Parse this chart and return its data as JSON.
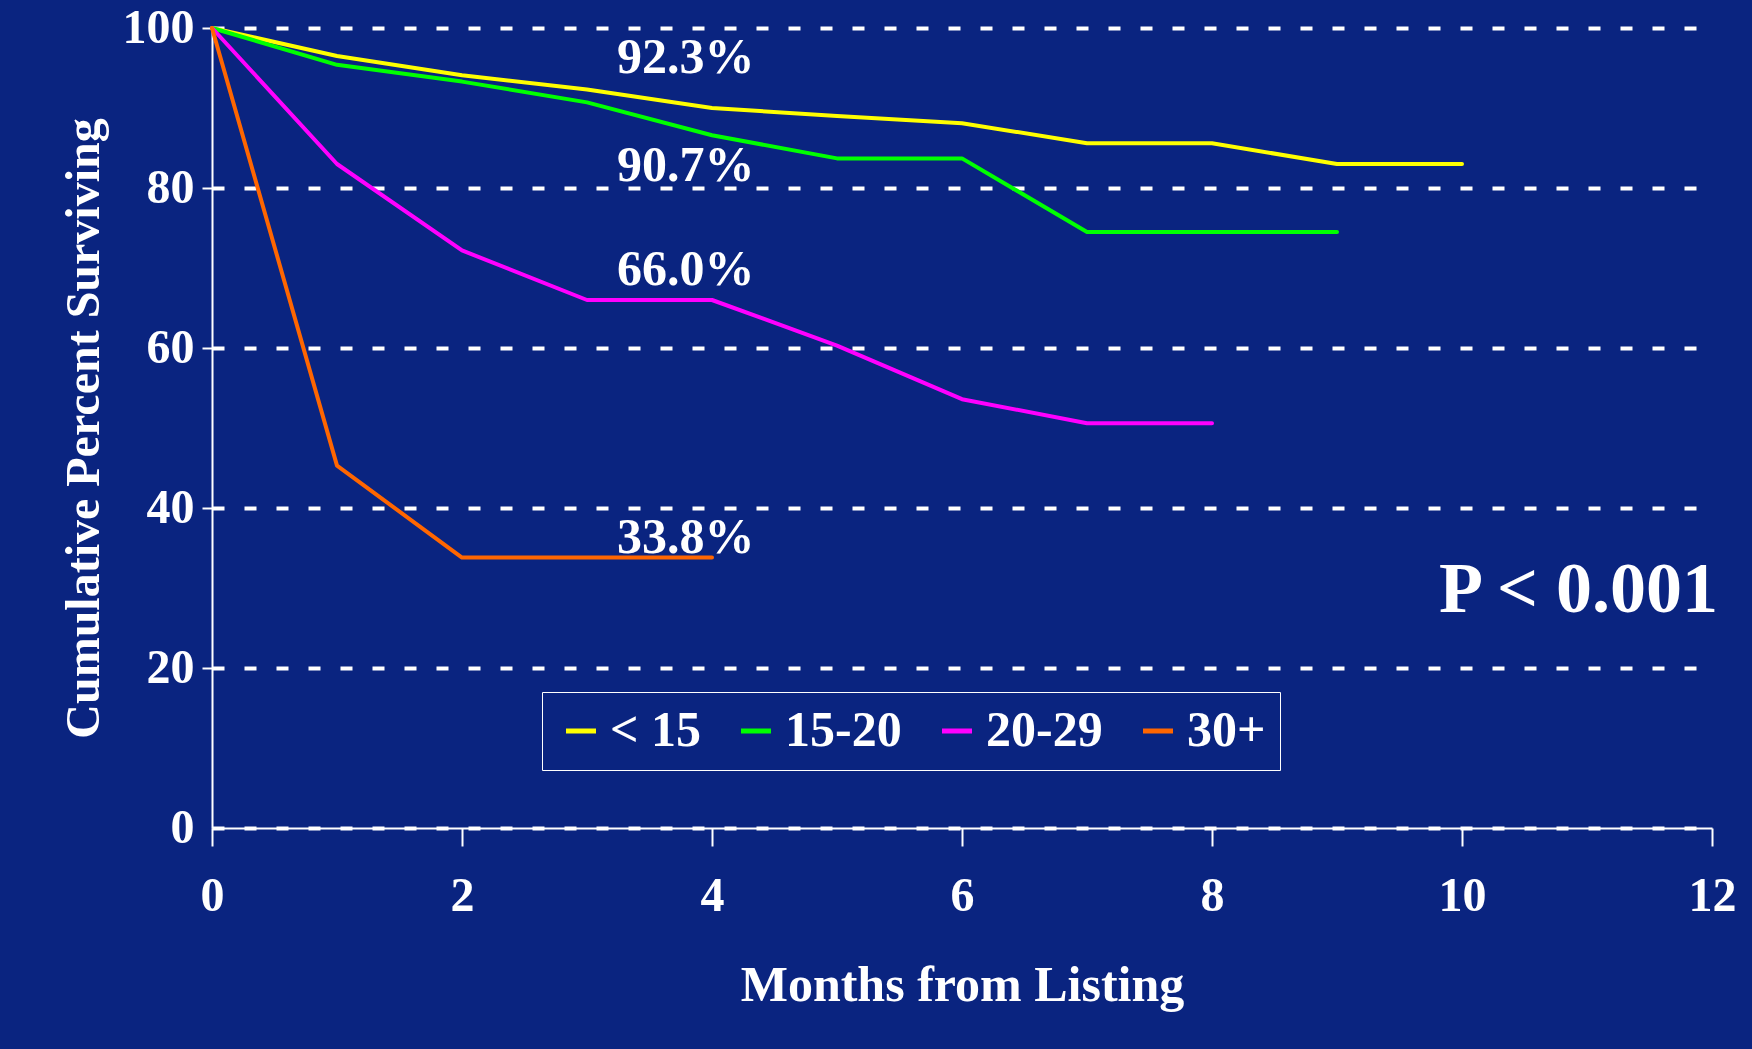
{
  "chart_data": {
    "type": "line",
    "xlabel": "Months from Listing",
    "ylabel": "Cumulative Percent Surviving",
    "xlim": [
      0,
      12
    ],
    "xticks": [
      0,
      2,
      4,
      6,
      8,
      10,
      12
    ],
    "ylim": [
      0,
      100
    ],
    "yticks": [
      0,
      20,
      40,
      60,
      80,
      100
    ],
    "grid": "y",
    "legend": "bottom",
    "marker": "none",
    "line_style": "solid",
    "series": [
      {
        "name": "< 15",
        "color": "#ffff00",
        "x": [
          0,
          1,
          2,
          3,
          4,
          5,
          6,
          7,
          8,
          9,
          10
        ],
        "values": [
          100,
          96.5,
          94.1,
          92.3,
          90.0,
          89.0,
          88.1,
          85.6,
          85.6,
          83.0,
          83.0
        ]
      },
      {
        "name": "15-20",
        "color": "#00ff00",
        "x": [
          0,
          1,
          2,
          3,
          4,
          5,
          6,
          7,
          8,
          9
        ],
        "values": [
          100,
          95.4,
          93.3,
          90.7,
          86.6,
          83.7,
          83.7,
          74.5,
          74.5,
          74.5
        ]
      },
      {
        "name": "20-29",
        "color": "#ff00ff",
        "x": [
          0,
          1,
          2,
          3,
          4,
          5,
          6,
          7,
          8
        ],
        "values": [
          100,
          83.0,
          72.2,
          66.0,
          66.0,
          60.3,
          53.6,
          50.6,
          50.6
        ]
      },
      {
        "name": "30+",
        "color": "#ff6600",
        "x": [
          0,
          1,
          2,
          3,
          4
        ],
        "values": [
          100,
          45.3,
          33.8,
          33.8,
          33.8
        ]
      }
    ],
    "annotations": [
      "92.3%",
      "90.7%",
      "66.0%",
      "33.8%",
      "P < 0.001"
    ]
  }
}
